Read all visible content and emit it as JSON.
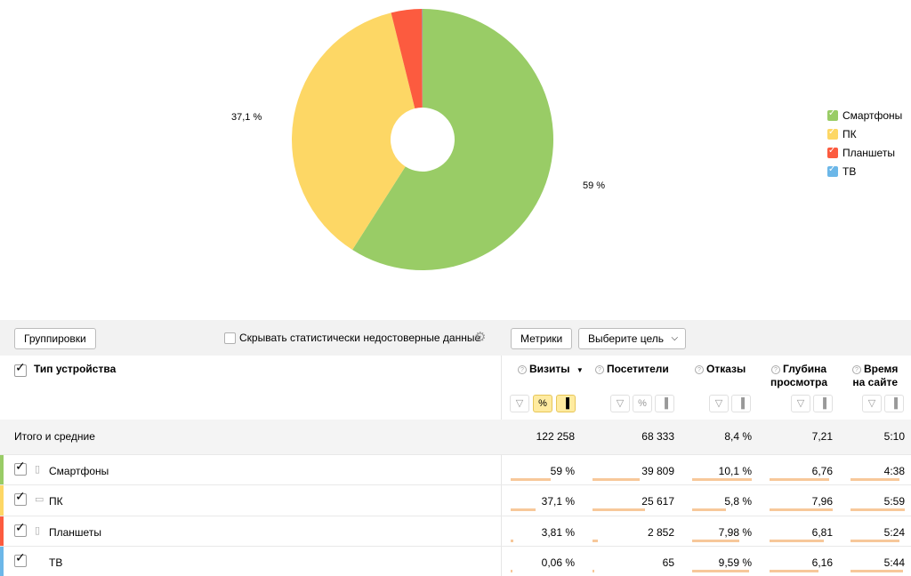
{
  "chart_data": {
    "type": "pie",
    "title": "",
    "series": [
      {
        "name": "Смартфоны",
        "value": 59,
        "color": "#99cc66"
      },
      {
        "name": "ПК",
        "value": 37.1,
        "color": "#fdd765"
      },
      {
        "name": "Планшеты",
        "value": 3.81,
        "color": "#fc5b3f"
      },
      {
        "name": "ТВ",
        "value": 0.06,
        "color": "#6cb7e8"
      }
    ],
    "data_labels": [
      "59 %",
      "37,1 %"
    ],
    "legend_placement": "right",
    "donut": true
  },
  "legend": [
    {
      "label": "Смартфоны",
      "color": "#99cc66"
    },
    {
      "label": "ПК",
      "color": "#fdd765"
    },
    {
      "label": "Планшеты",
      "color": "#fc5b3f"
    },
    {
      "label": "ТВ",
      "color": "#6cb7e8"
    }
  ],
  "toolbar": {
    "groupings_label": "Группировки",
    "hide_unreliable_label": "Скрывать статистически недостоверные данные",
    "metrics_label": "Метрики",
    "goal_label": "Выберите цель"
  },
  "table": {
    "dimension_title": "Тип устройства",
    "headers": {
      "visits": "Визиты",
      "sort_indicator": "▼",
      "visitors": "Посетители",
      "bounces": "Отказы",
      "depth_1": "Глубина",
      "depth_2": "просмотра",
      "time_1": "Время",
      "time_2": "на сайте"
    },
    "total": {
      "label": "Итого и средние",
      "visits": "122 258",
      "visitors": "68 333",
      "bounces": "8,4 %",
      "depth": "7,21",
      "time": "5:10"
    },
    "rows": [
      {
        "label": "Смартфоны",
        "visits": "59 %",
        "visitors": "39 809",
        "bounces": "10,1 %",
        "depth": "6,76",
        "time": "4:38",
        "color": "#99cc66",
        "fill": {
          "visits": 0.59,
          "visitors": 0.58,
          "bounces": 1.0,
          "depth": 0.94,
          "time": 0.9
        }
      },
      {
        "label": "ПК",
        "visits": "37,1 %",
        "visitors": "25 617",
        "bounces": "5,8 %",
        "depth": "7,96",
        "time": "5:59",
        "color": "#fdd765",
        "fill": {
          "visits": 0.37,
          "visitors": 0.64,
          "bounces": 0.57,
          "depth": 1.0,
          "time": 1.0
        }
      },
      {
        "label": "Планшеты",
        "visits": "3,81 %",
        "visitors": "2 852",
        "bounces": "7,98 %",
        "depth": "6,81",
        "time": "5:24",
        "color": "#fc5b3f",
        "fill": {
          "visits": 0.04,
          "visitors": 0.07,
          "bounces": 0.79,
          "depth": 0.86,
          "time": 0.9
        }
      },
      {
        "label": "ТВ",
        "visits": "0,06 %",
        "visitors": "65",
        "bounces": "9,59 %",
        "depth": "6,16",
        "time": "5:44",
        "color": "#6cb7e8",
        "fill": {
          "visits": 0.0,
          "visitors": 0.0,
          "bounces": 0.95,
          "depth": 0.78,
          "time": 0.96
        }
      }
    ]
  }
}
